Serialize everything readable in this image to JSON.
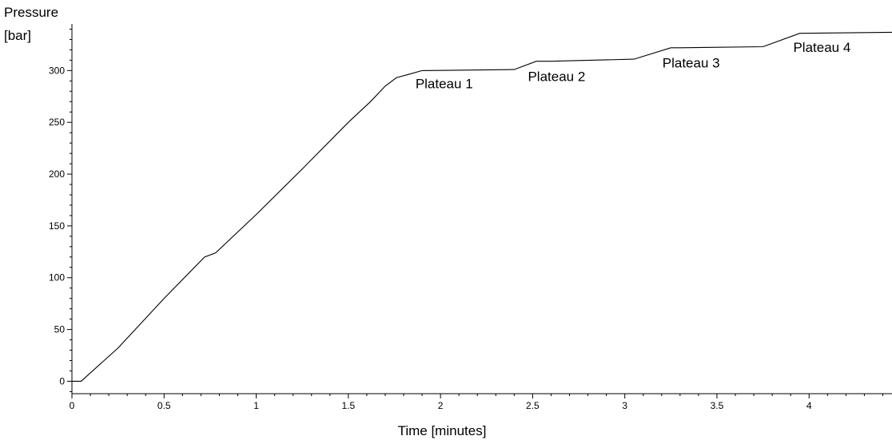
{
  "chart_data": {
    "type": "line",
    "title": "",
    "xlabel": "Time [minutes]",
    "ylabel_lines": [
      "Pressure",
      "[bar]"
    ],
    "xlim": [
      0,
      4.45
    ],
    "ylim": [
      -12,
      345
    ],
    "x_ticks": [
      0,
      0.5,
      1,
      1.5,
      2,
      2.5,
      3,
      3.5,
      4
    ],
    "x_tick_labels": [
      "0",
      "0.5",
      "1",
      "1.5",
      "2",
      "2.5",
      "3",
      "3.5",
      "4"
    ],
    "y_ticks": [
      0,
      50,
      100,
      150,
      200,
      250,
      300
    ],
    "y_tick_labels": [
      "0",
      "50",
      "100",
      "150",
      "200",
      "250",
      "300"
    ],
    "grid": false,
    "series": [
      {
        "x": [
          0,
          0.05,
          0.25,
          0.5,
          0.72,
          0.78,
          1.0,
          1.25,
          1.5,
          1.62,
          1.7,
          1.76,
          1.9,
          2.4,
          2.52,
          2.6,
          3.05,
          3.25,
          3.3,
          3.75,
          3.95,
          4.45
        ],
        "y": [
          0,
          0,
          32,
          80,
          120,
          124,
          161,
          205,
          250,
          270,
          285,
          293,
          300,
          301,
          309,
          309,
          311,
          322,
          322,
          323,
          336,
          337
        ]
      }
    ],
    "annotations": [
      {
        "text": "Plateau 1",
        "x": 2.02,
        "y": 283
      },
      {
        "text": "Plateau 2",
        "x": 2.63,
        "y": 290
      },
      {
        "text": "Plateau 3",
        "x": 3.36,
        "y": 303
      },
      {
        "text": "Plateau 4",
        "x": 4.07,
        "y": 318
      }
    ]
  }
}
